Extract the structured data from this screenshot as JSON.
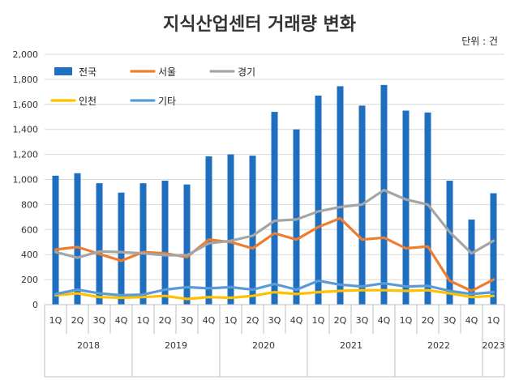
{
  "chart_data": {
    "type": "bar",
    "title": "지식산업센터 거래량 변화",
    "unit": "단위 : 건",
    "ylim": [
      0,
      2000
    ],
    "yticks": [
      "0",
      "200",
      "400",
      "600",
      "800",
      "1,000",
      "1,200",
      "1,400",
      "1,600",
      "1,800",
      "2,000"
    ],
    "grid": true,
    "legend_position": "top-left",
    "quarters": [
      "1Q",
      "2Q",
      "3Q",
      "4Q",
      "1Q",
      "2Q",
      "3Q",
      "4Q",
      "1Q",
      "2Q",
      "3Q",
      "4Q",
      "1Q",
      "2Q",
      "3Q",
      "4Q",
      "1Q",
      "2Q",
      "3Q",
      "4Q",
      "1Q"
    ],
    "years": [
      {
        "label": "2018",
        "count": 4
      },
      {
        "label": "2019",
        "count": 4
      },
      {
        "label": "2020",
        "count": 4
      },
      {
        "label": "2021",
        "count": 4
      },
      {
        "label": "2022",
        "count": 4
      },
      {
        "label": "2023",
        "count": 1
      }
    ],
    "series": [
      {
        "name": "전국",
        "type": "bar",
        "color": "#1f6fc0",
        "values": [
          1030,
          1050,
          970,
          895,
          970,
          990,
          960,
          1185,
          1200,
          1190,
          1540,
          1400,
          1670,
          1745,
          1590,
          1755,
          1550,
          1535,
          990,
          680,
          890
        ]
      },
      {
        "name": "서울",
        "type": "line",
        "color": "#ed7d31",
        "values": [
          440,
          460,
          405,
          350,
          420,
          410,
          380,
          520,
          500,
          450,
          570,
          520,
          620,
          690,
          520,
          535,
          450,
          465,
          190,
          110,
          200
        ]
      },
      {
        "name": "경기",
        "type": "line",
        "color": "#a5a5a5",
        "values": [
          420,
          375,
          425,
          420,
          410,
          395,
          395,
          490,
          510,
          550,
          670,
          680,
          745,
          780,
          800,
          915,
          840,
          800,
          580,
          410,
          510
        ]
      },
      {
        "name": "인천",
        "type": "line",
        "color": "#ffc000",
        "values": [
          75,
          90,
          60,
          55,
          60,
          70,
          45,
          60,
          55,
          70,
          100,
          85,
          100,
          110,
          115,
          115,
          110,
          115,
          90,
          60,
          70
        ]
      },
      {
        "name": "기타",
        "type": "line",
        "color": "#5b9bd5",
        "values": [
          85,
          120,
          90,
          75,
          80,
          120,
          140,
          130,
          140,
          120,
          165,
          120,
          190,
          160,
          145,
          170,
          145,
          150,
          110,
          85,
          100
        ]
      }
    ]
  }
}
